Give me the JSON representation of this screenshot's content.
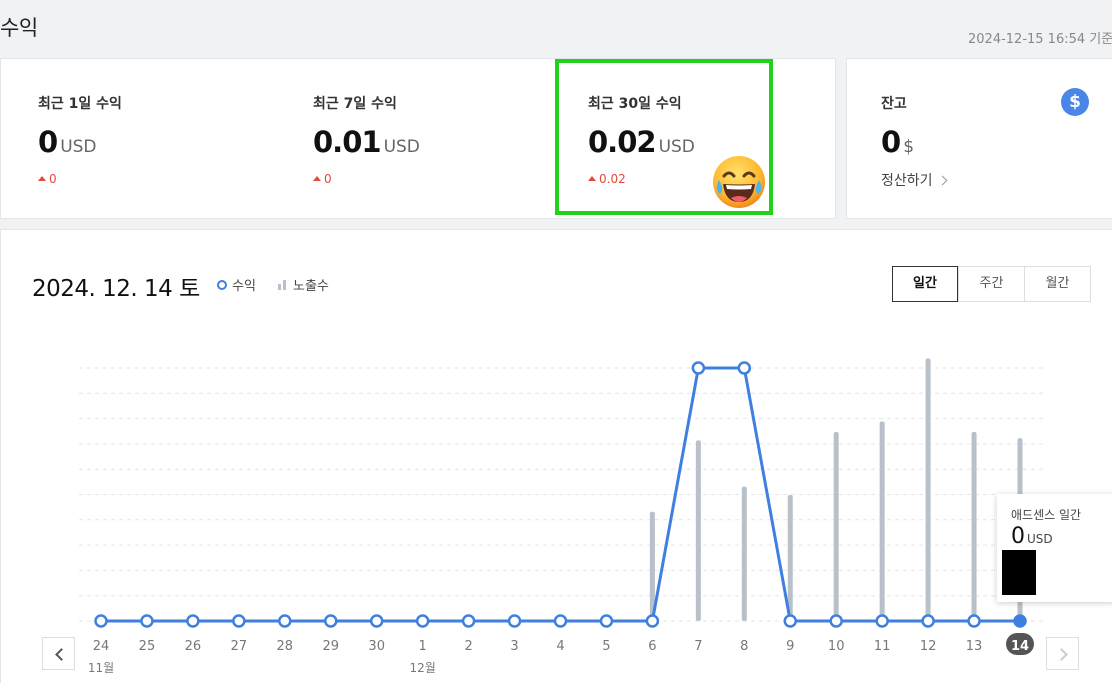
{
  "page": {
    "title": "수익",
    "timestamp": "2024-12-15 16:54 기준"
  },
  "cards": [
    {
      "label": "최근 1일 수익",
      "value": "0",
      "unit": "USD",
      "delta": "0"
    },
    {
      "label": "최근 7일 수익",
      "value": "0.01",
      "unit": "USD",
      "delta": "0"
    },
    {
      "label": "최근 30일 수익",
      "value": "0.02",
      "unit": "USD",
      "delta": "0.02"
    }
  ],
  "balance": {
    "label": "잔고",
    "value": "0",
    "unit": "$",
    "settle": "정산하기",
    "icon": "$"
  },
  "chart_header": {
    "date": "2024. 12. 14 토",
    "legend_revenue": "수익",
    "legend_impressions": "노출수",
    "tabs": [
      "일간",
      "주간",
      "월간"
    ],
    "active_tab": "일간"
  },
  "tooltip": {
    "title": "애드센스 일간",
    "value": "0",
    "unit": "USD"
  },
  "colors": {
    "revenue": "#3f7fe0",
    "impressions": "#b8c1c9",
    "highlight": "#22d11b",
    "delta": "#e5483e"
  },
  "chart_data": {
    "type": "line",
    "x": [
      "24",
      "25",
      "26",
      "27",
      "28",
      "29",
      "30",
      "1",
      "2",
      "3",
      "4",
      "5",
      "6",
      "7",
      "8",
      "9",
      "10",
      "11",
      "12",
      "13",
      "14"
    ],
    "month_labels": [
      {
        "at": "24",
        "label": "11월"
      },
      {
        "at": "1",
        "label": "12월"
      }
    ],
    "selected": "14",
    "series": [
      {
        "name": "수익",
        "values": [
          0,
          0,
          0,
          0,
          0,
          0,
          0,
          0,
          0,
          0,
          0,
          0,
          0,
          0.01,
          0.01,
          0,
          0,
          0,
          0,
          0,
          0
        ]
      },
      {
        "name": "노출수",
        "type": "bar",
        "values": [
          0,
          0,
          0,
          0,
          0,
          0,
          0,
          0,
          0,
          0,
          0,
          0,
          5.2,
          8.6,
          6.4,
          6.0,
          9.0,
          9.5,
          12.5,
          9.0,
          8.7
        ]
      }
    ]
  }
}
